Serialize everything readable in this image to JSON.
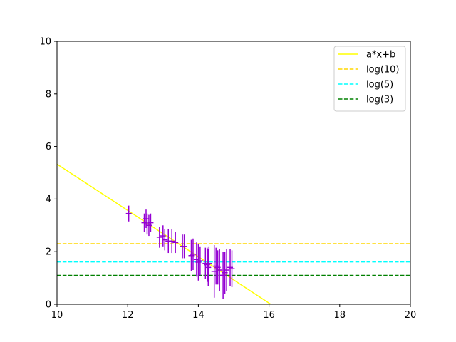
{
  "chart_data": {
    "type": "scatter",
    "title": "",
    "xlabel": "",
    "ylabel": "",
    "xlim": [
      10,
      20
    ],
    "ylim": [
      0,
      10
    ],
    "x_ticks": [
      "10",
      "12",
      "14",
      "16",
      "18",
      "20"
    ],
    "y_ticks": [
      "0",
      "2",
      "4",
      "6",
      "8",
      "10"
    ],
    "grid": false,
    "legend_position": "top-right",
    "series": [
      {
        "name": "a*x+b",
        "kind": "line",
        "color": "#ffff00",
        "x": [
          10,
          16.05
        ],
        "y": [
          5.33,
          0
        ]
      },
      {
        "name": "log(10)",
        "kind": "hline",
        "style": "dashed",
        "color": "#ffd700",
        "y": 2.303
      },
      {
        "name": "log(5)",
        "kind": "hline",
        "style": "dashed",
        "color": "#00ffff",
        "y": 1.609
      },
      {
        "name": "log(3)",
        "kind": "hline",
        "style": "dashed",
        "color": "#008000",
        "y": 1.099
      },
      {
        "kind": "errorbar",
        "color": "#9400d3",
        "points": [
          {
            "x": 12.03,
            "y": 3.45,
            "err": 0.3
          },
          {
            "x": 12.47,
            "y": 3.1,
            "err": 0.35
          },
          {
            "x": 12.52,
            "y": 3.25,
            "err": 0.35
          },
          {
            "x": 12.55,
            "y": 3.05,
            "err": 0.4
          },
          {
            "x": 12.6,
            "y": 3.0,
            "err": 0.4
          },
          {
            "x": 12.65,
            "y": 3.1,
            "err": 0.35
          },
          {
            "x": 12.9,
            "y": 2.55,
            "err": 0.4
          },
          {
            "x": 13.0,
            "y": 2.6,
            "err": 0.4
          },
          {
            "x": 13.05,
            "y": 2.45,
            "err": 0.4
          },
          {
            "x": 13.15,
            "y": 2.4,
            "err": 0.45
          },
          {
            "x": 13.25,
            "y": 2.4,
            "err": 0.45
          },
          {
            "x": 13.35,
            "y": 2.35,
            "err": 0.4
          },
          {
            "x": 13.55,
            "y": 2.2,
            "err": 0.45
          },
          {
            "x": 13.6,
            "y": 2.2,
            "err": 0.45
          },
          {
            "x": 13.8,
            "y": 1.85,
            "err": 0.6
          },
          {
            "x": 13.85,
            "y": 1.9,
            "err": 0.6
          },
          {
            "x": 13.95,
            "y": 1.7,
            "err": 0.65
          },
          {
            "x": 14.0,
            "y": 1.6,
            "err": 0.7
          },
          {
            "x": 14.05,
            "y": 1.65,
            "err": 0.55
          },
          {
            "x": 14.2,
            "y": 1.55,
            "err": 0.6
          },
          {
            "x": 14.25,
            "y": 1.5,
            "err": 0.65
          },
          {
            "x": 14.28,
            "y": 1.4,
            "err": 0.7
          },
          {
            "x": 14.3,
            "y": 1.55,
            "err": 0.65
          },
          {
            "x": 14.45,
            "y": 1.25,
            "err": 1.0
          },
          {
            "x": 14.5,
            "y": 1.45,
            "err": 0.7
          },
          {
            "x": 14.55,
            "y": 1.4,
            "err": 0.65
          },
          {
            "x": 14.6,
            "y": 1.3,
            "err": 0.8
          },
          {
            "x": 14.7,
            "y": 1.1,
            "err": 0.9
          },
          {
            "x": 14.75,
            "y": 1.2,
            "err": 0.8
          },
          {
            "x": 14.8,
            "y": 1.3,
            "err": 0.8
          },
          {
            "x": 14.9,
            "y": 1.4,
            "err": 0.7
          },
          {
            "x": 14.95,
            "y": 1.35,
            "err": 0.7
          }
        ]
      }
    ],
    "legend": [
      {
        "label": "a*x+b",
        "color": "#ffff00",
        "style": "solid"
      },
      {
        "label": "log(10)",
        "color": "#ffd700",
        "style": "dashed"
      },
      {
        "label": "log(5)",
        "color": "#00ffff",
        "style": "dashed"
      },
      {
        "label": "log(3)",
        "color": "#008000",
        "style": "dashed"
      }
    ]
  }
}
